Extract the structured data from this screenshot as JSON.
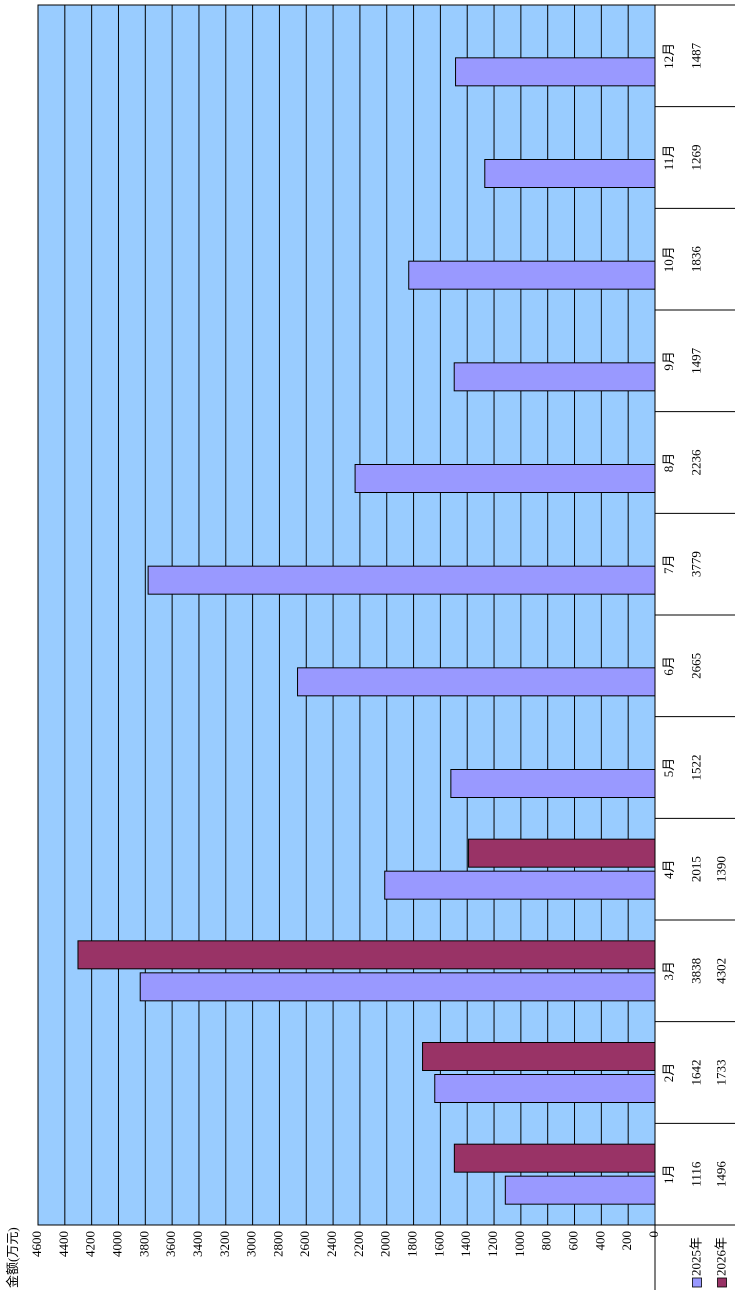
{
  "chart_data": {
    "type": "bar",
    "y_label": "金额(万元)",
    "categories": [
      "1月",
      "2月",
      "3月",
      "4月",
      "5月",
      "6月",
      "7月",
      "8月",
      "9月",
      "10月",
      "11月",
      "12月"
    ],
    "series": [
      {
        "name": "2025年",
        "color": "#9999ff",
        "values": [
          1116,
          1642,
          3838,
          2015,
          1522,
          2665,
          3779,
          2236,
          1497,
          1836,
          1269,
          1487
        ]
      },
      {
        "name": "2026年",
        "color": "#993366",
        "values": [
          1496,
          1733,
          4302,
          1390,
          null,
          null,
          null,
          null,
          null,
          null,
          null,
          null
        ]
      }
    ],
    "ylim": [
      0,
      4600
    ],
    "yticks": [
      0,
      200,
      400,
      600,
      800,
      1000,
      1200,
      1400,
      1600,
      1800,
      2000,
      2200,
      2400,
      2600,
      2800,
      3000,
      3200,
      3400,
      3600,
      3800,
      4000,
      4200,
      4400,
      4600
    ],
    "grid": true,
    "plot_background": "#99ccff",
    "data_table": true
  }
}
